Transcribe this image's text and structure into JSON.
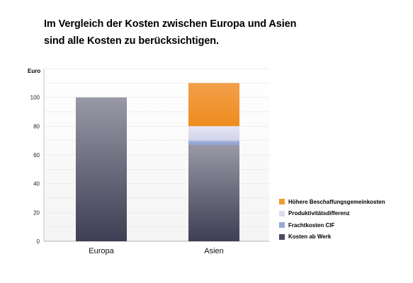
{
  "title": {
    "line1": "Im Vergleich der Kosten zwischen Europa und Asien",
    "line2": "sind alle Kosten zu berücksichtigen."
  },
  "chart_data": {
    "type": "bar",
    "stacked": true,
    "ylabel": "Euro",
    "ylim": [
      0,
      120
    ],
    "yticks": [
      0,
      20,
      40,
      60,
      80,
      100
    ],
    "grid": true,
    "legend_position": "bottom-right",
    "categories": [
      "Europa",
      "Asien"
    ],
    "series": [
      {
        "name": "Kosten ab Werk",
        "values": [
          100,
          67
        ],
        "color": "#4a4a60"
      },
      {
        "name": "Frachtkosten CIF",
        "values": [
          0,
          3
        ],
        "color": "#97a9d8"
      },
      {
        "name": "Produktivitätsdifferenz",
        "values": [
          0,
          10
        ],
        "color": "#dcdcf0"
      },
      {
        "name": "Höhere Beschaffungsgemeinkosten",
        "values": [
          0,
          30
        ],
        "color": "#f29a2e"
      }
    ],
    "legend_order": [
      "Höhere Beschaffungsgemeinkosten",
      "Produktivitätsdifferenz",
      "Frachtkosten CIF",
      "Kosten ab Werk"
    ]
  }
}
